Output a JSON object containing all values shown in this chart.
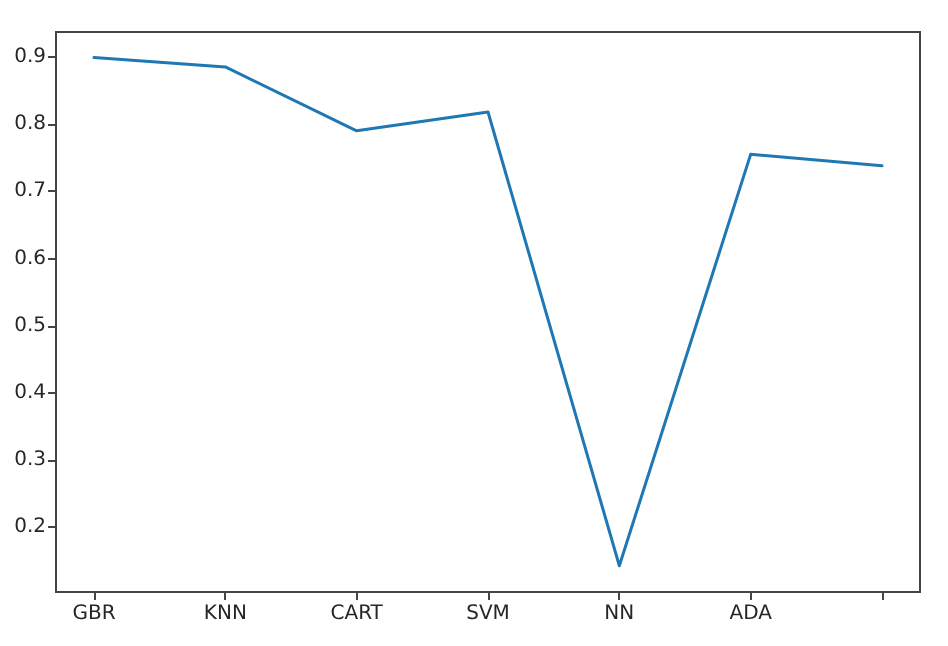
{
  "chart_data": {
    "type": "line",
    "categories": [
      "GBR",
      "KNN",
      "CART",
      "SVM",
      "NN",
      "ADA",
      null
    ],
    "series": [
      {
        "color": "#1f77b4",
        "values": [
          0.899,
          0.885,
          0.79,
          0.818,
          0.143,
          0.755,
          0.738
        ]
      }
    ],
    "ylim": [
      0.104,
      0.937
    ],
    "yticks": [
      0.2,
      0.3,
      0.4,
      0.5,
      0.6,
      0.7,
      0.8,
      0.9
    ],
    "grid": false,
    "marker": "none",
    "line_style": "solid"
  }
}
